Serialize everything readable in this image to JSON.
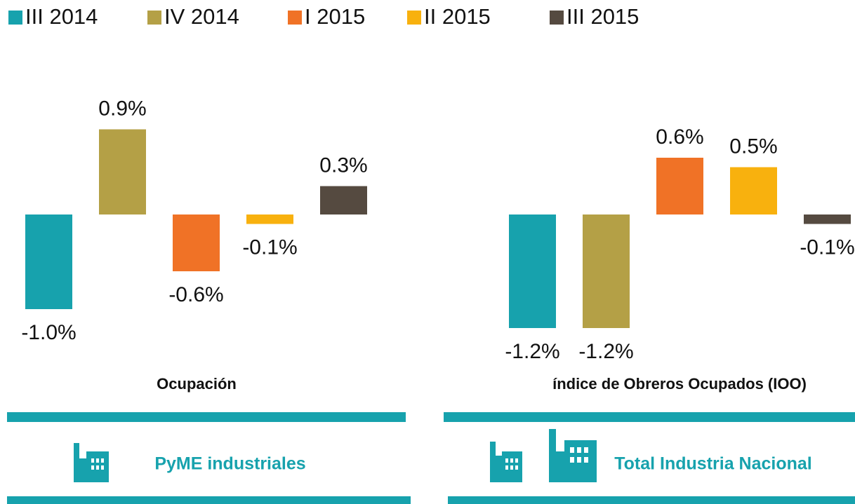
{
  "legend": {
    "items": [
      {
        "name": "III 2014",
        "color": "#17a2ad"
      },
      {
        "name": "IV 2014",
        "color": "#b4a046"
      },
      {
        "name": "I 2015",
        "color": "#f07226"
      },
      {
        "name": "II 2015",
        "color": "#f8b10e"
      },
      {
        "name": "III 2015",
        "color": "#554a40"
      }
    ]
  },
  "chart_data": [
    {
      "type": "bar",
      "title": "Ocupación",
      "banner": "PyME industriales",
      "values": [
        -1.0,
        0.9,
        -0.6,
        -0.1,
        0.3
      ],
      "value_labels": [
        "-1.0%",
        "0.9%",
        "-0.6%",
        "-0.1%",
        "0.3%"
      ],
      "ylim": [
        -1.3,
        1.0
      ]
    },
    {
      "type": "bar",
      "title": "índice de Obreros Ocupados (IOO)",
      "banner": "Total Industria Nacional",
      "values": [
        -1.2,
        -1.2,
        0.6,
        0.5,
        -0.1
      ],
      "value_labels": [
        "-1.2%",
        "-1.2%",
        "0.6%",
        "0.5%",
        "-0.1%"
      ],
      "ylim": [
        -1.3,
        1.0
      ]
    }
  ]
}
